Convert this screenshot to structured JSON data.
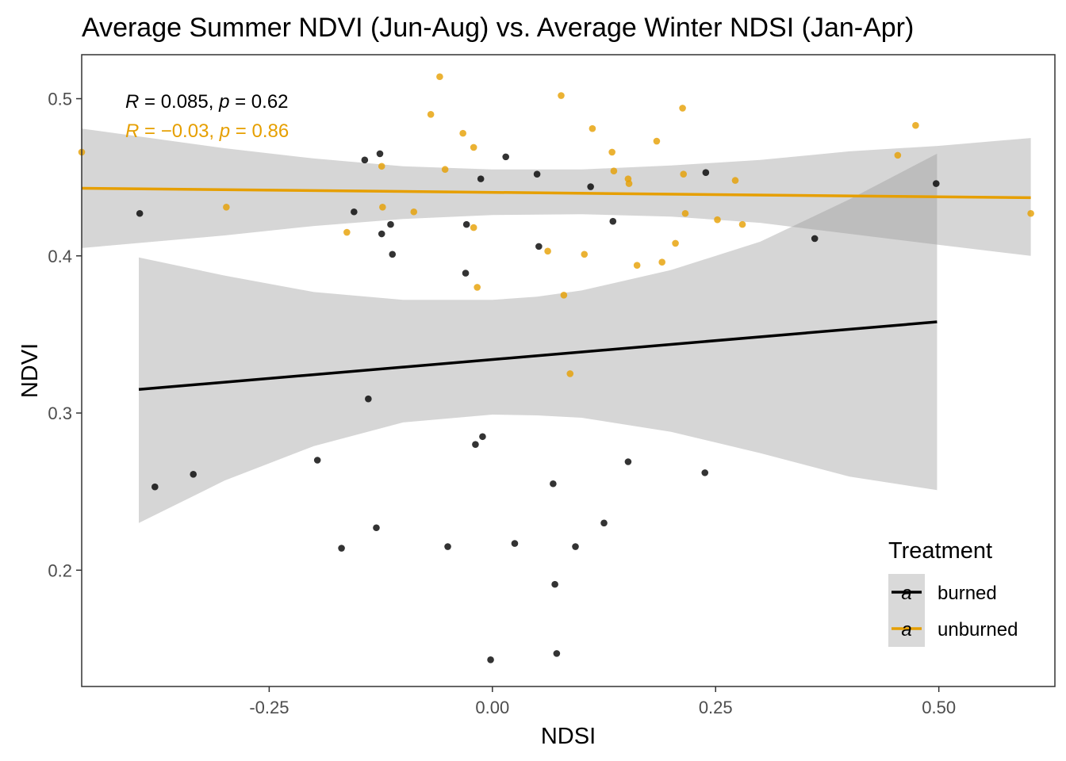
{
  "chart_data": {
    "type": "scatter",
    "title": "Average Summer NDVI (Jun-Aug) vs. Average Winter NDSI (Jan-Apr)",
    "xlabel": "NDSI",
    "ylabel": "NDVI",
    "xlim": [
      -0.46,
      0.63
    ],
    "ylim": [
      0.126,
      0.528
    ],
    "x_ticks": [
      -0.25,
      0.0,
      0.25,
      0.5
    ],
    "x_tick_labels": [
      "-0.25",
      "0.00",
      "0.25",
      "0.50"
    ],
    "y_ticks": [
      0.2,
      0.3,
      0.4,
      0.5
    ],
    "y_tick_labels": [
      "0.2",
      "0.3",
      "0.4",
      "0.5"
    ],
    "grid": false,
    "legend": {
      "title": "Treatment",
      "position": "bottom-right",
      "key_glyph": "a"
    },
    "series": [
      {
        "name": "burned",
        "color": "#000000",
        "stat_label": {
          "R_value": "0.085",
          "p_value": "0.62"
        },
        "fit": {
          "x": [
            -0.396,
            0.498
          ],
          "y": [
            0.315,
            0.358
          ]
        },
        "band": {
          "x": [
            -0.396,
            -0.3,
            -0.2,
            -0.1,
            0.0,
            0.05,
            0.1,
            0.2,
            0.3,
            0.4,
            0.498
          ],
          "upper": [
            0.399,
            0.3875,
            0.377,
            0.372,
            0.372,
            0.374,
            0.378,
            0.391,
            0.409,
            0.436,
            0.465
          ],
          "lower": [
            0.23,
            0.257,
            0.279,
            0.294,
            0.299,
            0.2985,
            0.297,
            0.288,
            0.2745,
            0.2595,
            0.251
          ]
        },
        "points": [
          {
            "x": -0.395,
            "y": 0.427
          },
          {
            "x": -0.378,
            "y": 0.253
          },
          {
            "x": -0.335,
            "y": 0.261
          },
          {
            "x": -0.196,
            "y": 0.27
          },
          {
            "x": -0.169,
            "y": 0.214
          },
          {
            "x": -0.155,
            "y": 0.428
          },
          {
            "x": -0.143,
            "y": 0.461
          },
          {
            "x": -0.139,
            "y": 0.309
          },
          {
            "x": -0.13,
            "y": 0.227
          },
          {
            "x": -0.126,
            "y": 0.465
          },
          {
            "x": -0.124,
            "y": 0.414
          },
          {
            "x": -0.114,
            "y": 0.42
          },
          {
            "x": -0.112,
            "y": 0.401
          },
          {
            "x": -0.05,
            "y": 0.215
          },
          {
            "x": -0.03,
            "y": 0.389
          },
          {
            "x": -0.029,
            "y": 0.42
          },
          {
            "x": -0.019,
            "y": 0.28
          },
          {
            "x": -0.013,
            "y": 0.449
          },
          {
            "x": -0.011,
            "y": 0.285
          },
          {
            "x": -0.002,
            "y": 0.143
          },
          {
            "x": 0.015,
            "y": 0.463
          },
          {
            "x": 0.025,
            "y": 0.217
          },
          {
            "x": 0.05,
            "y": 0.452
          },
          {
            "x": 0.052,
            "y": 0.406
          },
          {
            "x": 0.068,
            "y": 0.255
          },
          {
            "x": 0.07,
            "y": 0.191
          },
          {
            "x": 0.072,
            "y": 0.147
          },
          {
            "x": 0.093,
            "y": 0.215
          },
          {
            "x": 0.11,
            "y": 0.444
          },
          {
            "x": 0.125,
            "y": 0.23
          },
          {
            "x": 0.135,
            "y": 0.422
          },
          {
            "x": 0.152,
            "y": 0.269
          },
          {
            "x": 0.238,
            "y": 0.262
          },
          {
            "x": 0.239,
            "y": 0.453
          },
          {
            "x": 0.361,
            "y": 0.411
          },
          {
            "x": 0.497,
            "y": 0.446
          }
        ]
      },
      {
        "name": "unburned",
        "color": "#E69F00",
        "stat_label": {
          "R_value": "−0.03",
          "p_value": "0.86"
        },
        "fit": {
          "x": [
            -0.46,
            0.603
          ],
          "y": [
            0.443,
            0.437
          ]
        },
        "band": {
          "x": [
            -0.46,
            -0.3,
            -0.2,
            -0.1,
            0.0,
            0.1,
            0.2,
            0.3,
            0.4,
            0.5,
            0.603
          ],
          "upper": [
            0.481,
            0.4685,
            0.462,
            0.457,
            0.455,
            0.455,
            0.4575,
            0.461,
            0.4665,
            0.47,
            0.475
          ],
          "lower": [
            0.405,
            0.413,
            0.419,
            0.4235,
            0.426,
            0.4265,
            0.425,
            0.421,
            0.414,
            0.407,
            0.4
          ]
        },
        "points": [
          {
            "x": -0.46,
            "y": 0.466
          },
          {
            "x": -0.298,
            "y": 0.431
          },
          {
            "x": -0.163,
            "y": 0.415
          },
          {
            "x": -0.124,
            "y": 0.457
          },
          {
            "x": -0.123,
            "y": 0.431
          },
          {
            "x": -0.088,
            "y": 0.428
          },
          {
            "x": -0.069,
            "y": 0.49
          },
          {
            "x": -0.059,
            "y": 0.514
          },
          {
            "x": -0.053,
            "y": 0.455
          },
          {
            "x": -0.033,
            "y": 0.478
          },
          {
            "x": -0.021,
            "y": 0.469
          },
          {
            "x": -0.021,
            "y": 0.418
          },
          {
            "x": -0.017,
            "y": 0.38
          },
          {
            "x": 0.062,
            "y": 0.403
          },
          {
            "x": 0.077,
            "y": 0.502
          },
          {
            "x": 0.08,
            "y": 0.375
          },
          {
            "x": 0.087,
            "y": 0.325
          },
          {
            "x": 0.103,
            "y": 0.401
          },
          {
            "x": 0.112,
            "y": 0.481
          },
          {
            "x": 0.134,
            "y": 0.466
          },
          {
            "x": 0.136,
            "y": 0.454
          },
          {
            "x": 0.152,
            "y": 0.449
          },
          {
            "x": 0.153,
            "y": 0.446
          },
          {
            "x": 0.162,
            "y": 0.394
          },
          {
            "x": 0.184,
            "y": 0.473
          },
          {
            "x": 0.19,
            "y": 0.396
          },
          {
            "x": 0.205,
            "y": 0.408
          },
          {
            "x": 0.213,
            "y": 0.494
          },
          {
            "x": 0.214,
            "y": 0.452
          },
          {
            "x": 0.216,
            "y": 0.427
          },
          {
            "x": 0.252,
            "y": 0.423
          },
          {
            "x": 0.272,
            "y": 0.448
          },
          {
            "x": 0.28,
            "y": 0.42
          },
          {
            "x": 0.454,
            "y": 0.464
          },
          {
            "x": 0.474,
            "y": 0.483
          },
          {
            "x": 0.603,
            "y": 0.427
          }
        ]
      }
    ],
    "point_order": [
      [
        0,
        0
      ],
      [
        0,
        1
      ],
      [
        0,
        2
      ],
      [
        0,
        3
      ],
      [
        0,
        4
      ],
      [
        0,
        5
      ],
      [
        0,
        6
      ],
      [
        0,
        7
      ],
      [
        0,
        8
      ],
      [
        0,
        9
      ],
      [
        0,
        10
      ],
      [
        0,
        11
      ],
      [
        0,
        12
      ],
      [
        0,
        13
      ],
      [
        0,
        14
      ],
      [
        0,
        15
      ],
      [
        0,
        16
      ],
      [
        0,
        17
      ],
      [
        0,
        18
      ],
      [
        0,
        19
      ],
      [
        0,
        20
      ],
      [
        0,
        21
      ],
      [
        0,
        22
      ],
      [
        0,
        23
      ],
      [
        0,
        24
      ],
      [
        0,
        25
      ],
      [
        0,
        26
      ],
      [
        0,
        27
      ],
      [
        0,
        28
      ],
      [
        0,
        29
      ],
      [
        0,
        30
      ],
      [
        0,
        31
      ],
      [
        0,
        32
      ],
      [
        0,
        33
      ],
      [
        0,
        34
      ],
      [
        0,
        35
      ],
      [
        1,
        0
      ],
      [
        1,
        1
      ],
      [
        1,
        2
      ],
      [
        1,
        3
      ],
      [
        1,
        4
      ],
      [
        1,
        5
      ],
      [
        1,
        6
      ],
      [
        1,
        7
      ],
      [
        1,
        8
      ],
      [
        1,
        9
      ],
      [
        1,
        10
      ],
      [
        1,
        11
      ],
      [
        1,
        12
      ],
      [
        1,
        13
      ],
      [
        1,
        14
      ],
      [
        1,
        15
      ],
      [
        1,
        16
      ],
      [
        1,
        17
      ],
      [
        1,
        18
      ],
      [
        1,
        19
      ],
      [
        1,
        20
      ],
      [
        1,
        21
      ],
      [
        1,
        22
      ],
      [
        1,
        23
      ],
      [
        1,
        24
      ],
      [
        1,
        25
      ],
      [
        1,
        26
      ],
      [
        1,
        27
      ],
      [
        1,
        28
      ],
      [
        1,
        29
      ],
      [
        1,
        30
      ],
      [
        1,
        31
      ],
      [
        1,
        32
      ],
      [
        1,
        33
      ],
      [
        1,
        34
      ],
      [
        1,
        35
      ]
    ]
  }
}
